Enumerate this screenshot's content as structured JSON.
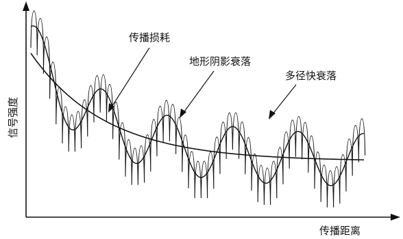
{
  "axes": {
    "y_label": "信号强度",
    "x_label": "传播距离"
  },
  "annotations": {
    "path_loss": "传播损耗",
    "shadowing": "地形阴影衰落",
    "fast_fading": "多径快衰落"
  }
}
